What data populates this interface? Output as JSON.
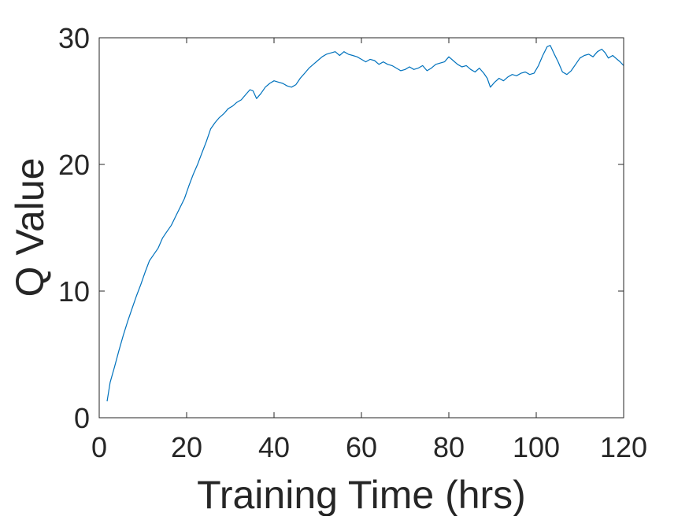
{
  "chart_data": {
    "type": "line",
    "title": "",
    "xlabel": "Training Time (hrs)",
    "ylabel": "Q Value",
    "xlim": [
      0,
      120
    ],
    "ylim": [
      0,
      30
    ],
    "xticks": [
      0,
      20,
      40,
      60,
      80,
      100,
      120
    ],
    "yticks": [
      0,
      10,
      20,
      30
    ],
    "xtick_labels": [
      "0",
      "20",
      "40",
      "60",
      "80",
      "100",
      "120"
    ],
    "ytick_labels": [
      "0",
      "10",
      "20",
      "30"
    ],
    "grid": false,
    "box": true,
    "line_color": "#0072BD",
    "series": [
      {
        "x": [
          1.8,
          2.5,
          3.5,
          4.5,
          5.5,
          6.5,
          7.5,
          8.5,
          9.5,
          10.5,
          11.5,
          12.5,
          13.5,
          14.5,
          15.5,
          16.5,
          17.5,
          18.5,
          19.5,
          20.5,
          21.5,
          22.5,
          23.5,
          24.5,
          25.5,
          26.5,
          27.5,
          28.5,
          29.5,
          30.5,
          31.5,
          32.5,
          33.5,
          34.5,
          35.2,
          36.0,
          37.0,
          38.0,
          39.0,
          40.0,
          41.0,
          42.0,
          43.0,
          44.0,
          45.0,
          46.0,
          47.0,
          48.0,
          49.0,
          50.0,
          51.0,
          52.0,
          53.0,
          54.0,
          55.0,
          56.0,
          57.0,
          58.0,
          59.0,
          60.0,
          61.0,
          62.0,
          63.0,
          64.0,
          65.0,
          66.0,
          67.0,
          68.0,
          69.0,
          70.0,
          71.0,
          72.0,
          73.0,
          74.0,
          75.0,
          76.0,
          77.0,
          78.0,
          79.0,
          80.0,
          81.0,
          82.0,
          83.0,
          84.0,
          85.0,
          86.0,
          87.0,
          88.0,
          88.8,
          89.5,
          90.5,
          91.5,
          92.5,
          93.5,
          94.5,
          95.5,
          96.5,
          97.5,
          98.5,
          99.5,
          100.5,
          101.5,
          102.5,
          103.2,
          104.0,
          105.0,
          106.0,
          107.0,
          108.0,
          109.0,
          110.0,
          111.0,
          112.0,
          113.0,
          114.0,
          115.0,
          115.8,
          116.5,
          117.5,
          118.5,
          119.2,
          120.0
        ],
        "y": [
          1.3,
          2.8,
          4.0,
          5.3,
          6.5,
          7.6,
          8.6,
          9.6,
          10.5,
          11.5,
          12.4,
          12.9,
          13.4,
          14.2,
          14.7,
          15.2,
          15.9,
          16.6,
          17.3,
          18.3,
          19.2,
          20.0,
          20.9,
          21.8,
          22.8,
          23.3,
          23.7,
          24.0,
          24.4,
          24.6,
          24.9,
          25.1,
          25.5,
          25.9,
          25.8,
          25.2,
          25.6,
          26.1,
          26.4,
          26.6,
          26.5,
          26.4,
          26.2,
          26.1,
          26.3,
          26.8,
          27.2,
          27.6,
          27.9,
          28.2,
          28.5,
          28.7,
          28.8,
          28.9,
          28.6,
          28.9,
          28.7,
          28.6,
          28.5,
          28.3,
          28.1,
          28.3,
          28.2,
          27.9,
          28.1,
          27.9,
          27.8,
          27.6,
          27.4,
          27.5,
          27.7,
          27.5,
          27.6,
          27.8,
          27.4,
          27.6,
          27.9,
          28.0,
          28.1,
          28.5,
          28.2,
          27.9,
          27.7,
          27.8,
          27.5,
          27.3,
          27.6,
          27.2,
          26.8,
          26.1,
          26.5,
          26.8,
          26.6,
          26.9,
          27.1,
          27.0,
          27.2,
          27.3,
          27.1,
          27.2,
          27.8,
          28.6,
          29.3,
          29.4,
          28.8,
          28.1,
          27.3,
          27.1,
          27.4,
          27.9,
          28.4,
          28.6,
          28.7,
          28.5,
          28.9,
          29.1,
          28.8,
          28.4,
          28.6,
          28.3,
          28.1,
          27.8
        ]
      }
    ]
  }
}
